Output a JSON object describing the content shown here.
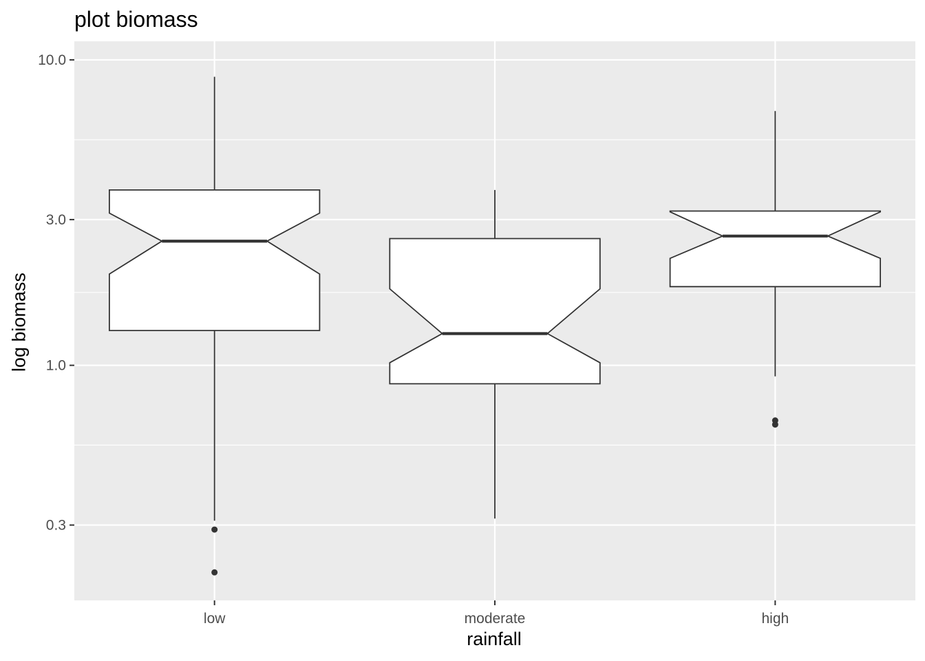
{
  "chart_data": {
    "type": "boxplot",
    "title": "plot biomass",
    "xlabel": "rainfall",
    "ylabel": "log biomass",
    "y_scale": "log10",
    "ylim": [
      0.17,
      11.5
    ],
    "y_ticks": [
      0.3,
      1.0,
      3.0,
      10.0
    ],
    "y_tick_labels": [
      "0.3",
      "1.0",
      "3.0",
      "10.0"
    ],
    "y_minor_ticks": [
      0.548,
      1.732,
      5.477
    ],
    "notched": true,
    "grid": true,
    "colors": {
      "panel_background": "#ebebeb",
      "gridline": "#ffffff",
      "box_fill": "#ffffff",
      "box_stroke": "#333333",
      "outlier": "#333333"
    },
    "categories": [
      "low",
      "moderate",
      "high"
    ],
    "boxes": [
      {
        "category": "low",
        "whisker_low": 0.31,
        "q1": 1.3,
        "median": 2.55,
        "q3": 3.75,
        "whisker_high": 8.8,
        "notch_low": 1.99,
        "notch_high": 3.15,
        "outliers": [
          0.29,
          0.21
        ]
      },
      {
        "category": "moderate",
        "whisker_low": 0.315,
        "q1": 0.87,
        "median": 1.27,
        "q3": 2.6,
        "whisker_high": 3.75,
        "notch_low": 1.02,
        "notch_high": 1.78,
        "outliers": []
      },
      {
        "category": "high",
        "whisker_low": 0.92,
        "q1": 1.81,
        "median": 2.65,
        "q3": 3.2,
        "whisker_high": 6.8,
        "notch_low": 2.24,
        "notch_high": 3.18,
        "outliers": [
          0.66,
          0.64
        ]
      }
    ]
  }
}
